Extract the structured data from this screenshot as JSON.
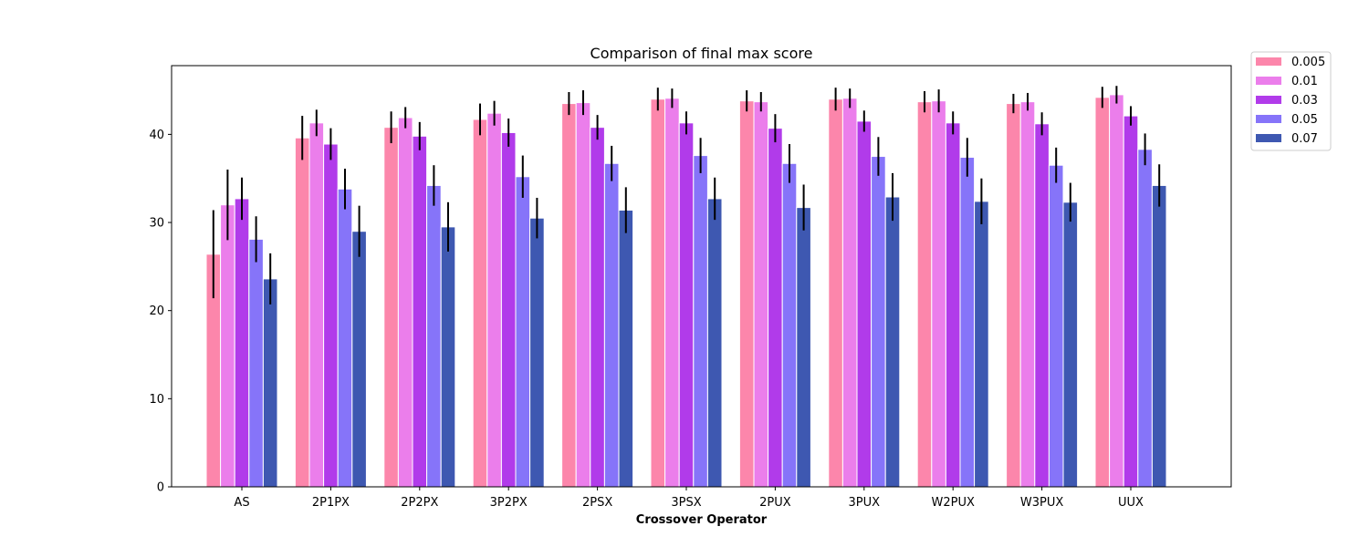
{
  "chart_data": {
    "type": "bar",
    "title": "Comparison of final max score",
    "xlabel": "Crossover Operator",
    "ylabel": "",
    "ylim": [
      0,
      47.8
    ],
    "yticks": [
      0,
      10,
      20,
      30,
      40
    ],
    "grid": false,
    "legend_position": "outside-top-right",
    "categories": [
      "AS",
      "2P1PX",
      "2P2PX",
      "3P2PX",
      "2PSX",
      "3PSX",
      "2PUX",
      "3PUX",
      "W2PUX",
      "W3PUX",
      "UUX"
    ],
    "series": [
      {
        "name": "0.005",
        "color": "#fc86ab",
        "values": [
          26.4,
          39.6,
          40.8,
          41.7,
          43.5,
          44.0,
          43.8,
          44.0,
          43.7,
          43.5,
          44.2
        ],
        "errors": [
          5.0,
          2.5,
          1.8,
          1.8,
          1.3,
          1.3,
          1.2,
          1.3,
          1.2,
          1.1,
          1.2
        ]
      },
      {
        "name": "0.01",
        "color": "#eb7eeb",
        "values": [
          32.0,
          41.3,
          41.9,
          42.4,
          43.6,
          44.1,
          43.7,
          44.1,
          43.8,
          43.7,
          44.5
        ],
        "errors": [
          4.0,
          1.5,
          1.2,
          1.4,
          1.4,
          1.1,
          1.1,
          1.1,
          1.3,
          1.0,
          1.0
        ]
      },
      {
        "name": "0.03",
        "color": "#b13bea",
        "values": [
          32.7,
          38.9,
          39.8,
          40.2,
          40.8,
          41.3,
          40.7,
          41.5,
          41.3,
          41.2,
          42.1
        ],
        "errors": [
          2.4,
          1.8,
          1.6,
          1.6,
          1.4,
          1.3,
          1.6,
          1.2,
          1.3,
          1.3,
          1.1
        ]
      },
      {
        "name": "0.05",
        "color": "#8674f9",
        "values": [
          28.1,
          33.8,
          34.2,
          35.2,
          36.7,
          37.6,
          36.7,
          37.5,
          37.4,
          36.5,
          38.3
        ],
        "errors": [
          2.6,
          2.3,
          2.3,
          2.4,
          2.0,
          2.0,
          2.2,
          2.2,
          2.2,
          2.0,
          1.8
        ]
      },
      {
        "name": "0.07",
        "color": "#3e58b1",
        "values": [
          23.6,
          29.0,
          29.5,
          30.5,
          31.4,
          32.7,
          31.7,
          32.9,
          32.4,
          32.3,
          34.2
        ],
        "errors": [
          2.9,
          2.9,
          2.8,
          2.3,
          2.6,
          2.4,
          2.6,
          2.7,
          2.6,
          2.2,
          2.4
        ]
      }
    ]
  }
}
